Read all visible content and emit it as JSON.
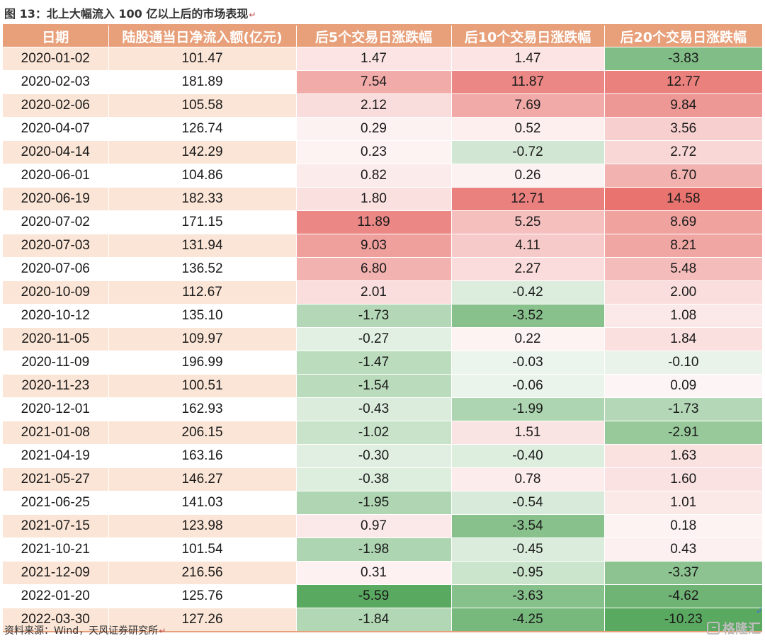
{
  "caption": "图 13：北上大幅流入 100 亿以上后的市场表现",
  "return_mark": "↵",
  "headers": [
    "日期",
    "陆股通当日净流入额(亿元)",
    "后5个交易日涨跌幅",
    "后10个交易日涨跌幅",
    "后20个交易日涨跌幅"
  ],
  "rows": [
    {
      "date": "2020-01-02",
      "flow": "101.47",
      "r5": "1.47",
      "r10": "1.47",
      "r20": "-3.83"
    },
    {
      "date": "2020-02-03",
      "flow": "181.89",
      "r5": "7.54",
      "r10": "11.87",
      "r20": "12.77"
    },
    {
      "date": "2020-02-06",
      "flow": "105.58",
      "r5": "2.12",
      "r10": "7.69",
      "r20": "9.84"
    },
    {
      "date": "2020-04-07",
      "flow": "126.74",
      "r5": "0.29",
      "r10": "0.52",
      "r20": "3.56"
    },
    {
      "date": "2020-04-14",
      "flow": "142.29",
      "r5": "0.23",
      "r10": "-0.72",
      "r20": "2.72"
    },
    {
      "date": "2020-06-01",
      "flow": "104.86",
      "r5": "0.82",
      "r10": "0.26",
      "r20": "6.70"
    },
    {
      "date": "2020-06-19",
      "flow": "182.33",
      "r5": "1.80",
      "r10": "12.71",
      "r20": "14.58"
    },
    {
      "date": "2020-07-02",
      "flow": "171.15",
      "r5": "11.89",
      "r10": "5.25",
      "r20": "8.69"
    },
    {
      "date": "2020-07-03",
      "flow": "131.94",
      "r5": "9.03",
      "r10": "4.11",
      "r20": "8.21"
    },
    {
      "date": "2020-07-06",
      "flow": "136.52",
      "r5": "6.80",
      "r10": "2.27",
      "r20": "5.48"
    },
    {
      "date": "2020-10-09",
      "flow": "112.67",
      "r5": "2.01",
      "r10": "-0.42",
      "r20": "2.00"
    },
    {
      "date": "2020-10-12",
      "flow": "135.10",
      "r5": "-1.73",
      "r10": "-3.52",
      "r20": "1.08"
    },
    {
      "date": "2020-11-05",
      "flow": "109.97",
      "r5": "-0.27",
      "r10": "0.22",
      "r20": "1.84"
    },
    {
      "date": "2020-11-09",
      "flow": "196.99",
      "r5": "-1.47",
      "r10": "-0.03",
      "r20": "-0.10"
    },
    {
      "date": "2020-11-23",
      "flow": "100.51",
      "r5": "-1.54",
      "r10": "-0.06",
      "r20": "0.09"
    },
    {
      "date": "2020-12-01",
      "flow": "162.93",
      "r5": "-0.43",
      "r10": "-1.99",
      "r20": "-1.73"
    },
    {
      "date": "2021-01-08",
      "flow": "206.15",
      "r5": "-1.02",
      "r10": "1.51",
      "r20": "-2.91"
    },
    {
      "date": "2021-04-19",
      "flow": "163.16",
      "r5": "-0.30",
      "r10": "-0.40",
      "r20": "1.63"
    },
    {
      "date": "2021-05-27",
      "flow": "146.27",
      "r5": "-0.38",
      "r10": "0.78",
      "r20": "1.60"
    },
    {
      "date": "2021-06-25",
      "flow": "141.03",
      "r5": "-1.95",
      "r10": "-0.54",
      "r20": "1.01"
    },
    {
      "date": "2021-07-15",
      "flow": "123.98",
      "r5": "0.97",
      "r10": "-3.54",
      "r20": "0.18"
    },
    {
      "date": "2021-10-21",
      "flow": "101.54",
      "r5": "-1.98",
      "r10": "-0.45",
      "r20": "0.43"
    },
    {
      "date": "2021-12-09",
      "flow": "216.56",
      "r5": "0.31",
      "r10": "-0.95",
      "r20": "-3.37"
    },
    {
      "date": "2022-01-20",
      "flow": "125.76",
      "r5": "-5.59",
      "r10": "-3.63",
      "r20": "-4.62"
    },
    {
      "date": "2022-03-30",
      "flow": "127.26",
      "r5": "-1.84",
      "r10": "-4.25",
      "r20": "-10.23"
    }
  ],
  "source": "资料来源：Wind，天风证券研究所",
  "logo": "格隆汇",
  "colors": {
    "header_bg": "#e8a07a",
    "date_alt_bg": "#fbe5d6",
    "positive": "#e8736f",
    "negative": "#5aa960"
  }
}
